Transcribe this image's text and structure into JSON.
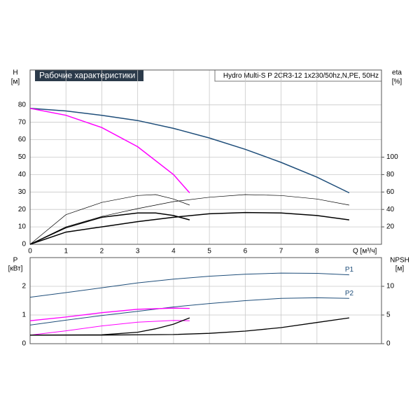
{
  "chart_data": [
    {
      "type": "line",
      "title": "Рабочие характеристики",
      "subtitle": "Hydro Multi-S P 2CR3-12 1x230/50hz,N,PE, 50Hz",
      "ylabel": "H",
      "yunit": "[м]",
      "y2label": "eta",
      "y2unit": "[%]",
      "xlabel": "Q [м³/ч]",
      "xlim": [
        0,
        9.8
      ],
      "xticks": [
        0,
        1,
        2,
        3,
        4,
        5,
        6,
        7,
        8
      ],
      "ylim": [
        0,
        100
      ],
      "yticks": [
        0,
        10,
        20,
        30,
        40,
        50,
        60,
        70,
        80
      ],
      "y2lim": [
        0,
        200
      ],
      "y2ticks": [
        20,
        40,
        60,
        80,
        100
      ],
      "grid": true,
      "series": [
        {
          "color": "#1f4e7a",
          "linewidth": 1.5,
          "x": [
            0,
            1,
            2,
            3,
            4,
            5,
            6,
            7,
            8,
            8.9
          ],
          "values": [
            78,
            76.5,
            74,
            71,
            66.5,
            61,
            54.5,
            47,
            38.5,
            29.5
          ]
        },
        {
          "color": "#ff00ff",
          "linewidth": 1.5,
          "x": [
            0,
            1,
            2,
            3,
            4,
            4.45
          ],
          "values": [
            78,
            74,
            67,
            56,
            40,
            29.5
          ]
        },
        {
          "color": "#000000",
          "linewidth": 1.5,
          "axis": "y2",
          "x": [
            0,
            1,
            2,
            3,
            4,
            5,
            6,
            7,
            8,
            8.9
          ],
          "values": [
            0,
            14,
            20,
            26,
            31,
            35,
            36.5,
            36,
            33,
            28
          ]
        },
        {
          "color": "#000000",
          "linewidth": 1.5,
          "axis": "y2",
          "x": [
            0,
            1,
            2,
            3,
            3.5,
            4,
            4.45
          ],
          "values": [
            0,
            19,
            31,
            36,
            36,
            33,
            28
          ]
        },
        {
          "color": "#000000",
          "linewidth": 0.7,
          "axis": "y2",
          "x": [
            0,
            1,
            2,
            3,
            4,
            5,
            6,
            7,
            8,
            8.9
          ],
          "values": [
            0,
            20,
            32,
            41,
            49,
            54,
            57,
            56,
            52,
            45
          ]
        },
        {
          "color": "#000000",
          "linewidth": 0.7,
          "axis": "y2",
          "x": [
            0,
            1,
            2,
            3,
            3.5,
            4,
            4.45
          ],
          "values": [
            0,
            34,
            48,
            56,
            57,
            52,
            45
          ]
        }
      ]
    },
    {
      "type": "line",
      "ylabel": "P",
      "yunit": "[кВт]",
      "y2label": "NPSH",
      "y2unit": "[м]",
      "xlim": [
        0,
        9.8
      ],
      "ylim": [
        0,
        3
      ],
      "yticks": [
        0,
        1,
        2
      ],
      "y2lim": [
        0,
        15
      ],
      "y2ticks": [
        0,
        5,
        10
      ],
      "grid": true,
      "series": [
        {
          "name": "P1",
          "color": "#1f4e7a",
          "linewidth": 1,
          "x": [
            0,
            1,
            2,
            3,
            4,
            5,
            6,
            7,
            8,
            8.9
          ],
          "values": [
            1.62,
            1.78,
            1.95,
            2.12,
            2.25,
            2.35,
            2.42,
            2.46,
            2.45,
            2.4
          ]
        },
        {
          "name": "P2",
          "color": "#1f4e7a",
          "linewidth": 1,
          "x": [
            0,
            1,
            2,
            3,
            4,
            5,
            6,
            7,
            8,
            8.9
          ],
          "values": [
            0.65,
            0.82,
            0.98,
            1.13,
            1.28,
            1.4,
            1.5,
            1.58,
            1.6,
            1.58
          ]
        },
        {
          "color": "#ff00ff",
          "linewidth": 1.3,
          "x": [
            0,
            1,
            2,
            3,
            4,
            4.45
          ],
          "values": [
            0.8,
            0.93,
            1.08,
            1.2,
            1.24,
            1.23
          ]
        },
        {
          "color": "#ff00ff",
          "linewidth": 1,
          "x": [
            0,
            1,
            2,
            3,
            4,
            4.45
          ],
          "values": [
            0.3,
            0.45,
            0.62,
            0.75,
            0.81,
            0.8
          ]
        },
        {
          "color": "#000000",
          "linewidth": 1.3,
          "axis": "y2",
          "x": [
            0,
            2,
            4,
            5,
            6,
            7,
            8,
            8.9
          ],
          "values": [
            1.5,
            1.5,
            1.6,
            1.8,
            2.2,
            2.8,
            3.7,
            4.5
          ]
        },
        {
          "color": "#000000",
          "linewidth": 1.3,
          "axis": "y2",
          "x": [
            0,
            2,
            3,
            3.5,
            4,
            4.45
          ],
          "values": [
            1.5,
            1.55,
            2.0,
            2.6,
            3.4,
            4.5
          ]
        }
      ]
    }
  ]
}
